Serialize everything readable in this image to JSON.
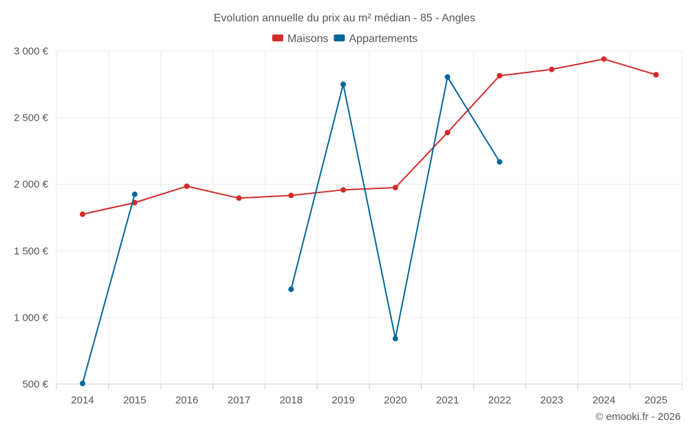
{
  "chart_data": {
    "type": "line",
    "title": "Evolution annuelle du prix au m² médian - 85 - Angles",
    "categories": [
      "2014",
      "2015",
      "2016",
      "2017",
      "2018",
      "2019",
      "2020",
      "2021",
      "2022",
      "2023",
      "2024",
      "2025"
    ],
    "series": [
      {
        "name": "Maisons",
        "color": "#d42a2a",
        "values": [
          1775,
          1862,
          1985,
          1896,
          1916,
          1958,
          1975,
          2388,
          2815,
          2862,
          2940,
          2822
        ]
      },
      {
        "name": "Appartements",
        "color": "#006699",
        "values": [
          505,
          1925,
          null,
          null,
          1212,
          2750,
          842,
          2805,
          2168,
          null,
          null,
          null
        ]
      }
    ],
    "ylim": [
      500,
      3000
    ],
    "yticks": [
      500,
      1000,
      1500,
      2000,
      2500,
      3000
    ],
    "ytick_labels": [
      "500 €",
      "1 000 €",
      "1 500 €",
      "2 000 €",
      "2 500 €",
      "3 000 €"
    ],
    "xlabel": "",
    "ylabel": "",
    "legend_position": "top-center",
    "grid": true
  },
  "credit": "© emooki.fr - 2026"
}
